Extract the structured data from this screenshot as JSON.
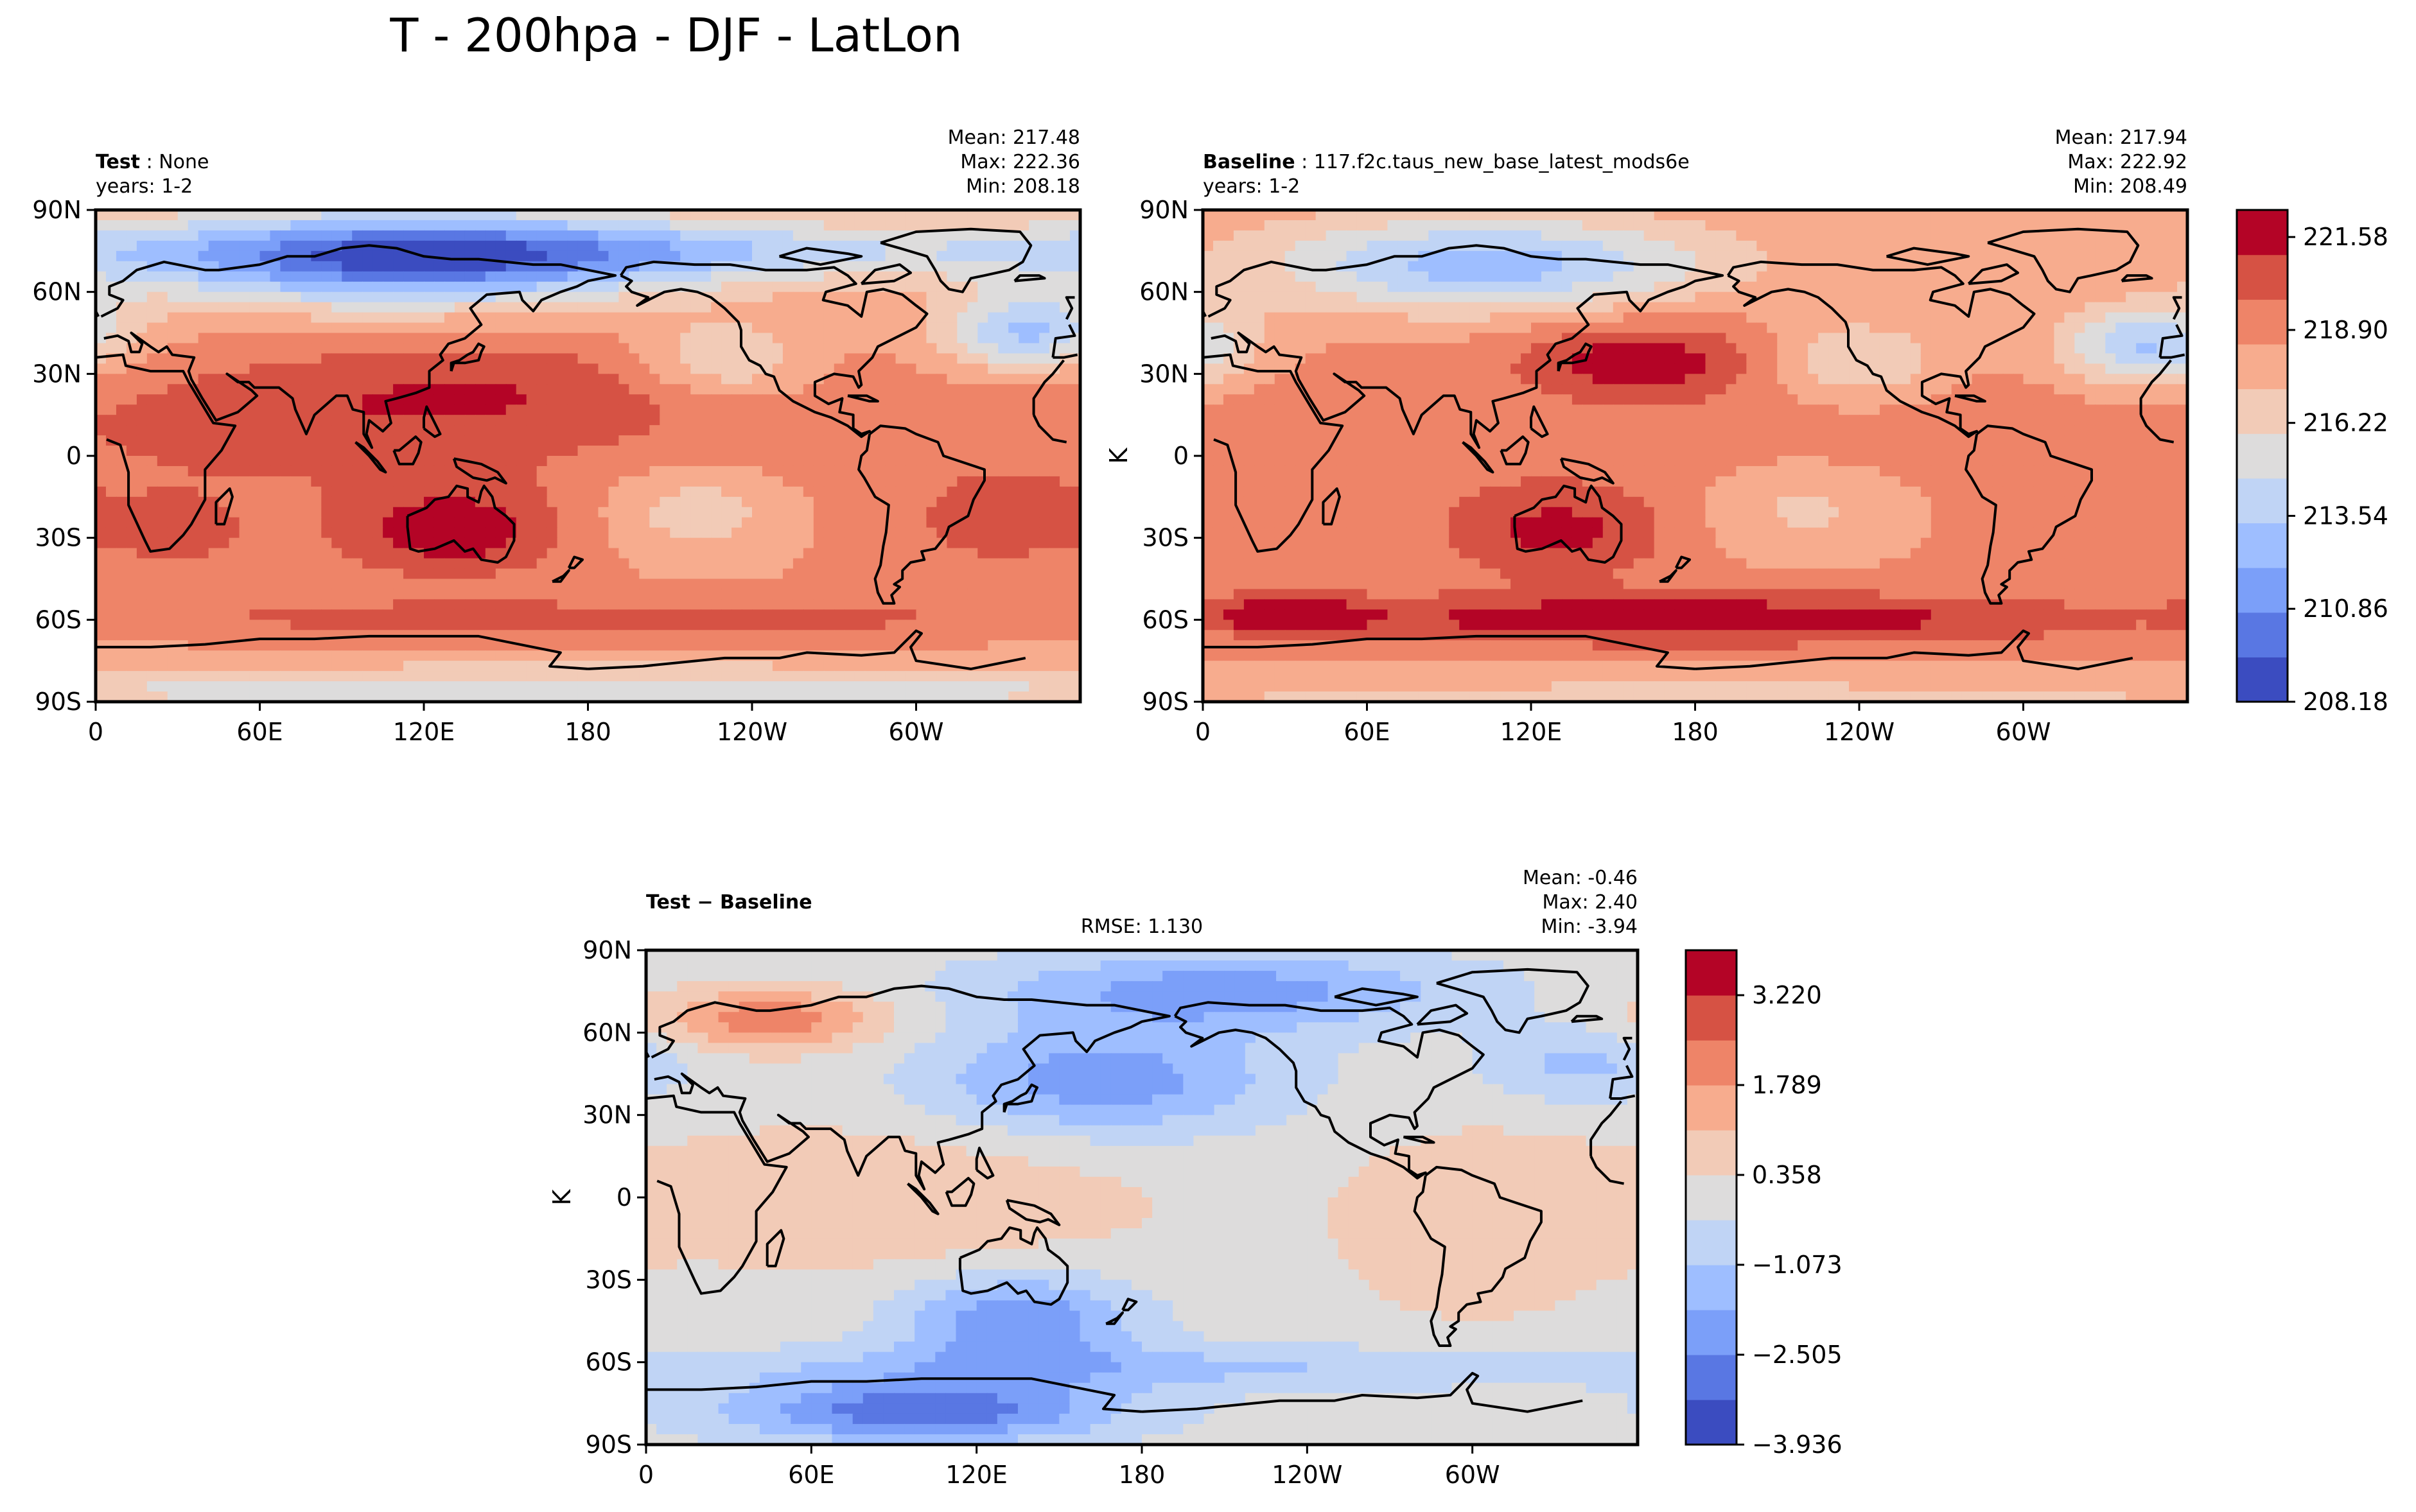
{
  "figure_title": "T - 200hpa - DJF - LatLon",
  "colors": {
    "cmap": [
      "#3b4cc0",
      "#5977e3",
      "#7b9ff9",
      "#9ebeff",
      "#c0d4f5",
      "#dddcdc",
      "#f2cbb7",
      "#f7ac8e",
      "#ee8468",
      "#d65244",
      "#b40426"
    ],
    "coast": "#000000",
    "frame": "#000000"
  },
  "chart_data": [
    {
      "id": "test",
      "type": "heatmap",
      "name_bold": "Test",
      "name_rest": " : None",
      "years": "years: 1-2",
      "stats": [
        "Mean: 217.48",
        "Max: 222.36",
        "Min: 208.18"
      ],
      "mean": 217.48,
      "max": 222.36,
      "min": 208.18,
      "xlim": [
        0,
        360
      ],
      "ylim": [
        -90,
        90
      ],
      "x_ticks": [
        "0",
        "60E",
        "120E",
        "180",
        "120W",
        "60W"
      ],
      "x_tick_values": [
        0,
        60,
        120,
        180,
        240,
        300
      ],
      "y_ticks": [
        "90N",
        "60N",
        "30N",
        "0",
        "30S",
        "60S",
        "90S"
      ],
      "y_tick_values": [
        90,
        60,
        30,
        0,
        -30,
        -60,
        -90
      ],
      "ylabel": ""
    },
    {
      "id": "baseline",
      "type": "heatmap",
      "name_bold": "Baseline",
      "name_rest": " : 117.f2c.taus_new_base_latest_mods6e",
      "years": "years: 1-2",
      "stats": [
        "Mean: 217.94",
        "Max: 222.92",
        "Min: 208.49"
      ],
      "mean": 217.94,
      "max": 222.92,
      "min": 208.49,
      "xlim": [
        0,
        360
      ],
      "ylim": [
        -90,
        90
      ],
      "x_ticks": [
        "0",
        "60E",
        "120E",
        "180",
        "120W",
        "60W"
      ],
      "x_tick_values": [
        0,
        60,
        120,
        180,
        240,
        300
      ],
      "y_ticks": [
        "90N",
        "60N",
        "30N",
        "0",
        "30S",
        "60S",
        "90S"
      ],
      "y_tick_values": [
        90,
        60,
        30,
        0,
        -30,
        -60,
        -90
      ],
      "ylabel": "K",
      "colorbar": {
        "range": [
          208.18,
          222.36
        ],
        "levels": 11,
        "tick_labels": [
          "221.58",
          "218.90",
          "216.22",
          "213.54",
          "210.86",
          "208.18"
        ],
        "tick_values": [
          221.58,
          218.9,
          216.22,
          213.54,
          210.86,
          208.18
        ]
      }
    },
    {
      "id": "diff",
      "type": "heatmap",
      "name_bold": "Test − Baseline",
      "name_rest": "",
      "rmse": "RMSE: 1.130",
      "stats": [
        "Mean: -0.46",
        "Max:  2.40",
        "Min: -3.94"
      ],
      "mean": -0.46,
      "max": 2.4,
      "min": -3.94,
      "xlim": [
        0,
        360
      ],
      "ylim": [
        -90,
        90
      ],
      "x_ticks": [
        "0",
        "60E",
        "120E",
        "180",
        "120W",
        "60W"
      ],
      "x_tick_values": [
        0,
        60,
        120,
        180,
        240,
        300
      ],
      "y_ticks": [
        "90N",
        "60N",
        "30N",
        "0",
        "30S",
        "60S",
        "90S"
      ],
      "y_tick_values": [
        90,
        60,
        30,
        0,
        -30,
        -60,
        -90
      ],
      "ylabel": "K",
      "colorbar": {
        "range": [
          -3.936,
          3.936
        ],
        "levels": 11,
        "tick_labels": [
          "3.220",
          "1.789",
          "0.358",
          "−1.073",
          "−2.505",
          "−3.936"
        ],
        "tick_values": [
          3.22,
          1.789,
          0.358,
          -1.073,
          -2.505,
          -3.936
        ]
      }
    }
  ]
}
